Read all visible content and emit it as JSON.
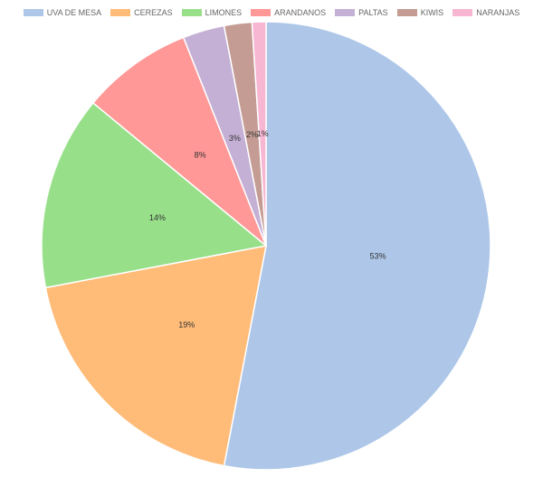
{
  "chart_data": {
    "type": "pie",
    "title": "",
    "legend_position": "top",
    "categories": [
      "UVA DE MESA",
      "CEREZAS",
      "LIMONES",
      "ARANDANOS",
      "PALTAS",
      "KIWIS",
      "NARANJAS"
    ],
    "values": [
      53,
      19,
      14,
      8,
      3,
      2,
      1
    ],
    "labels": [
      "53%",
      "19%",
      "14%",
      "8%",
      "3%",
      "2%",
      "1%"
    ],
    "colors": [
      "#aec7e8",
      "#ffbb78",
      "#98df8a",
      "#ff9896",
      "#c5b0d5",
      "#c49c94",
      "#f7b6d2"
    ]
  }
}
